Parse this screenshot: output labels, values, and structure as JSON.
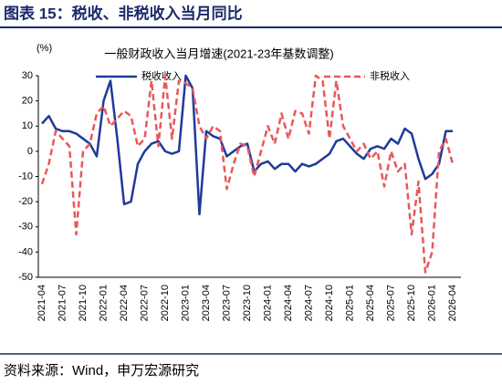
{
  "chart_data": {
    "type": "line",
    "title": "图表 15：税收、非税收入当月同比",
    "subtitle": "一般财政收入当月增速(2021-23年基数调整)",
    "y_label": "(%)",
    "source": "资料来源：Wind，申万宏源研究",
    "categories": [
      "2021-04",
      null,
      null,
      "2021-07",
      null,
      null,
      "2021-10",
      null,
      null,
      "2022-01",
      null,
      null,
      "2022-04",
      null,
      null,
      "2022-07",
      null,
      null,
      "2022-10",
      null,
      null,
      "2023-01",
      null,
      null,
      "2023-04",
      null,
      null,
      "2023-07",
      null,
      null,
      "2023-10",
      null,
      null,
      "2024-01",
      null,
      null,
      "2024-04",
      null,
      null,
      "2024-07",
      null,
      null,
      "2024-10",
      null,
      null,
      "2025-01",
      null,
      null,
      "2025-04",
      null,
      null,
      "2025-07",
      null,
      null,
      "2025-10",
      null,
      null,
      "2026-01",
      null,
      null,
      "2026-04"
    ],
    "series": [
      {
        "name": "税收收入",
        "color": "#1f3a9a",
        "dashed": false,
        "values": [
          11,
          14,
          9,
          8,
          8,
          7,
          5,
          3,
          -2,
          20,
          28,
          5,
          -21,
          -20,
          -5,
          0,
          3,
          4,
          0,
          -1,
          0,
          30,
          25,
          -25,
          8,
          6,
          5,
          -2,
          0,
          2,
          3,
          -8,
          -5,
          -4,
          -7,
          -5,
          -5,
          -8,
          -5,
          -6,
          -5,
          -3,
          -1,
          4,
          5,
          2,
          -1,
          -3,
          1,
          2,
          1,
          5,
          3,
          9,
          7,
          -3,
          -11,
          -9,
          -5,
          8,
          8
        ]
      },
      {
        "name": "非税收入",
        "color": "#e8585a",
        "dashed": true,
        "values": [
          -13,
          -5,
          8,
          5,
          2,
          -33,
          0,
          3,
          15,
          18,
          10,
          13,
          16,
          14,
          2,
          5,
          28,
          2,
          30,
          5,
          28,
          27,
          25,
          10,
          5,
          10,
          8,
          -15,
          -5,
          3,
          2,
          -10,
          0,
          10,
          3,
          15,
          5,
          16,
          15,
          7,
          30,
          28,
          5,
          28,
          10,
          5,
          0,
          3,
          -3,
          0,
          -14,
          0,
          -8,
          -5,
          -33,
          -12,
          -48,
          -40,
          0,
          5,
          -5
        ]
      }
    ],
    "ylim": [
      -50,
      30
    ],
    "yticks": [
      -50,
      -40,
      -30,
      -20,
      -10,
      0,
      10,
      20,
      30
    ],
    "grid": false
  }
}
